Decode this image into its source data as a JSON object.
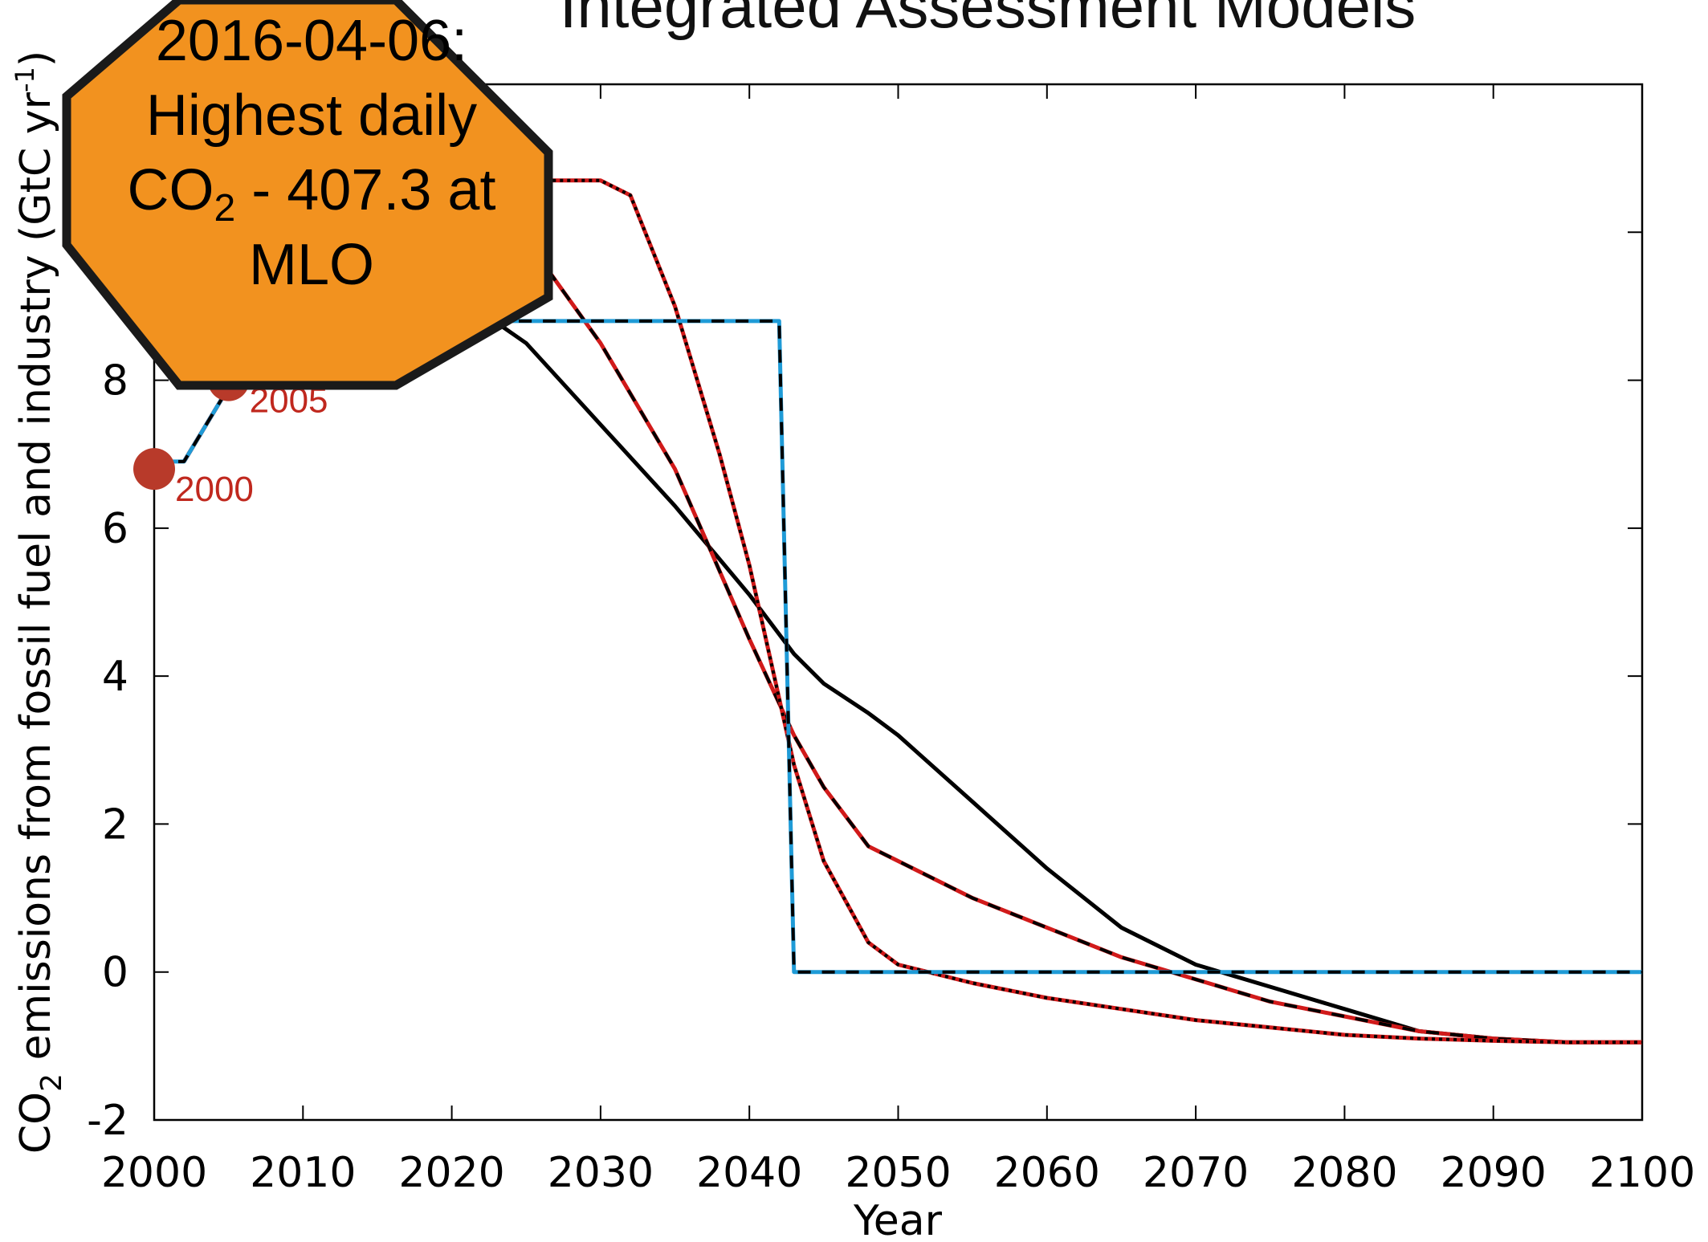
{
  "chart_data": {
    "type": "line",
    "title": "Integrated Assessment Models",
    "xlabel": "Year",
    "ylabel": {
      "prefix": "CO",
      "sub": "2",
      "middle": " emissions from fossil fuel and industry (GtC yr",
      "sup": "-1",
      "suffix": ")"
    },
    "xlim": [
      2000,
      2100
    ],
    "ylim": [
      -2,
      12
    ],
    "x_ticks": [
      "2000",
      "2010",
      "2020",
      "2030",
      "2040",
      "2050",
      "2060",
      "2070",
      "2080",
      "2090",
      "2100"
    ],
    "y_ticks": [
      "-2",
      "0",
      "2",
      "4",
      "6",
      "8"
    ],
    "grid": false,
    "series": [
      {
        "color": "#000000",
        "style": "solid",
        "x": [
          2002,
          2005,
          2010,
          2015,
          2020,
          2025,
          2030,
          2035,
          2040,
          2043,
          2045,
          2048,
          2050,
          2055,
          2060,
          2065,
          2070,
          2075,
          2080,
          2085,
          2090,
          2095,
          2100
        ],
        "y": [
          6.9,
          7.9,
          8.5,
          9.0,
          9.2,
          8.5,
          7.4,
          6.3,
          5.1,
          4.3,
          3.9,
          3.5,
          3.2,
          2.3,
          1.4,
          0.6,
          0.1,
          -0.2,
          -0.5,
          -0.8,
          -0.9,
          -0.95,
          -0.95
        ]
      },
      {
        "color": "#d11a1a",
        "style": "dashed-black",
        "x": [
          2002,
          2005,
          2010,
          2015,
          2020,
          2025,
          2030,
          2035,
          2040,
          2043,
          2045,
          2048,
          2050,
          2055,
          2060,
          2065,
          2070,
          2075,
          2080,
          2085,
          2090,
          2095,
          2100
        ],
        "y": [
          6.9,
          7.9,
          8.8,
          9.8,
          10.5,
          9.9,
          8.5,
          6.8,
          4.5,
          3.2,
          2.5,
          1.7,
          1.5,
          1.0,
          0.6,
          0.2,
          -0.1,
          -0.4,
          -0.6,
          -0.8,
          -0.9,
          -0.95,
          -0.95
        ]
      },
      {
        "color": "#d11a1a",
        "style": "dotted-black",
        "x": [
          2002,
          2005,
          2010,
          2015,
          2020,
          2025,
          2028,
          2030,
          2032,
          2035,
          2038,
          2040,
          2043,
          2045,
          2048,
          2050,
          2055,
          2060,
          2065,
          2070,
          2075,
          2080,
          2085,
          2090,
          2095,
          2100
        ],
        "y": [
          6.9,
          7.9,
          8.8,
          9.8,
          10.5,
          10.7,
          10.7,
          10.7,
          10.5,
          9.0,
          7.0,
          5.5,
          2.8,
          1.5,
          0.4,
          0.1,
          -0.15,
          -0.35,
          -0.5,
          -0.65,
          -0.75,
          -0.85,
          -0.9,
          -0.93,
          -0.95,
          -0.95
        ]
      },
      {
        "color": "#1f9bd7",
        "style": "dashed-black",
        "x": [
          2000,
          2002,
          2005,
          2008,
          2010,
          2015,
          2020,
          2030,
          2040,
          2042,
          2043,
          2050,
          2060,
          2070,
          2080,
          2090,
          2100
        ],
        "y": [
          6.9,
          6.9,
          7.9,
          8.6,
          8.8,
          8.8,
          8.8,
          8.8,
          8.8,
          8.8,
          0.0,
          0.0,
          0.0,
          0.0,
          0.0,
          0.0,
          0.0
        ]
      }
    ],
    "annotations": [
      {
        "label": "2000",
        "x": 2000,
        "y": 6.8
      },
      {
        "label": "2005",
        "x": 2005,
        "y": 8.0
      }
    ]
  },
  "stop_sign": {
    "line1": "2016-04-06:",
    "line2": "Highest daily",
    "line3_prefix": "CO",
    "line3_sub": "2",
    "line3_suffix": " - 407.3 at",
    "line4": "MLO",
    "fill": "#f2921f"
  }
}
